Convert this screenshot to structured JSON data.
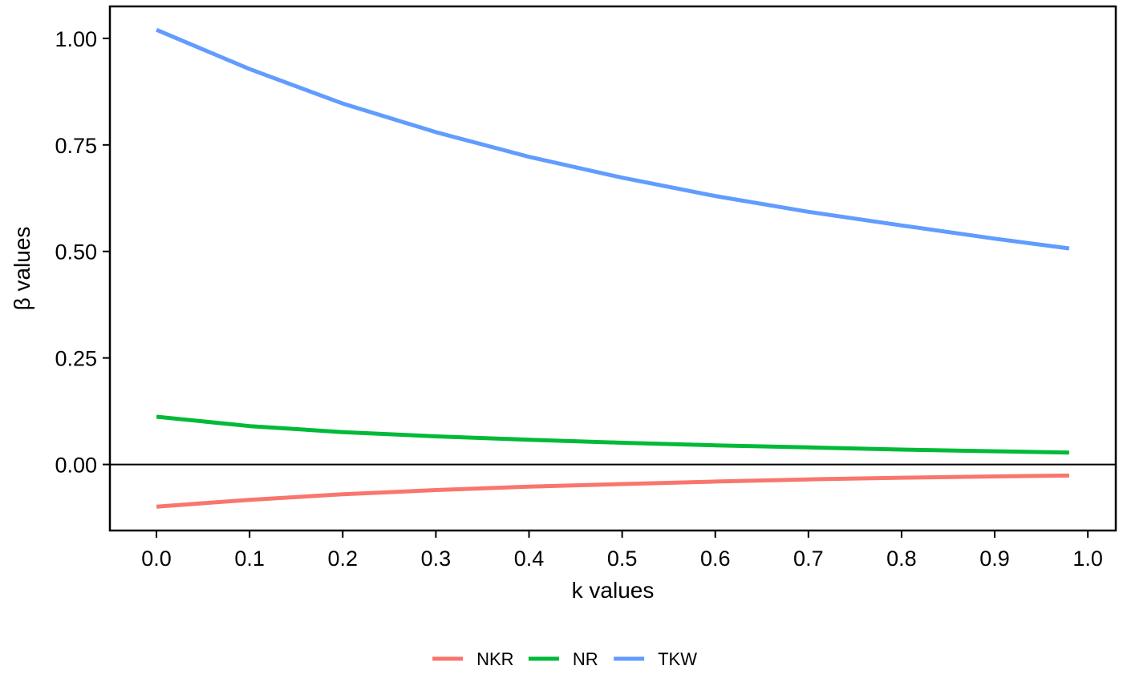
{
  "chart_data": {
    "type": "line",
    "xlabel": "k values",
    "ylabel": "β values",
    "xlim": [
      -0.05,
      1.03
    ],
    "ylim": [
      -0.155,
      1.075
    ],
    "xticks": [
      0.0,
      0.1,
      0.2,
      0.3,
      0.4,
      0.5,
      0.6,
      0.7,
      0.8,
      0.9,
      1.0
    ],
    "xtick_labels": [
      "0.0",
      "0.1",
      "0.2",
      "0.3",
      "0.4",
      "0.5",
      "0.6",
      "0.7",
      "0.8",
      "0.9",
      "1.0"
    ],
    "yticks": [
      0.0,
      0.25,
      0.5,
      0.75,
      1.0
    ],
    "ytick_labels": [
      "0.00",
      "0.25",
      "0.50",
      "0.75",
      "1.00"
    ],
    "hline": 0,
    "grid": false,
    "legend_position": "bottom",
    "x": [
      0.0,
      0.1,
      0.2,
      0.3,
      0.4,
      0.5,
      0.6,
      0.7,
      0.8,
      0.9,
      0.98
    ],
    "series": [
      {
        "name": "NKR",
        "color": "#F8766D",
        "values": [
          -0.099,
          -0.083,
          -0.07,
          -0.06,
          -0.052,
          -0.046,
          -0.04,
          -0.035,
          -0.031,
          -0.028,
          -0.026
        ]
      },
      {
        "name": "NR",
        "color": "#00BA38",
        "values": [
          0.112,
          0.09,
          0.076,
          0.066,
          0.058,
          0.051,
          0.045,
          0.04,
          0.035,
          0.031,
          0.028
        ]
      },
      {
        "name": "TKW",
        "color": "#619CFF",
        "values": [
          1.02,
          0.928,
          0.847,
          0.78,
          0.722,
          0.673,
          0.63,
          0.593,
          0.561,
          0.53,
          0.507
        ]
      }
    ]
  }
}
